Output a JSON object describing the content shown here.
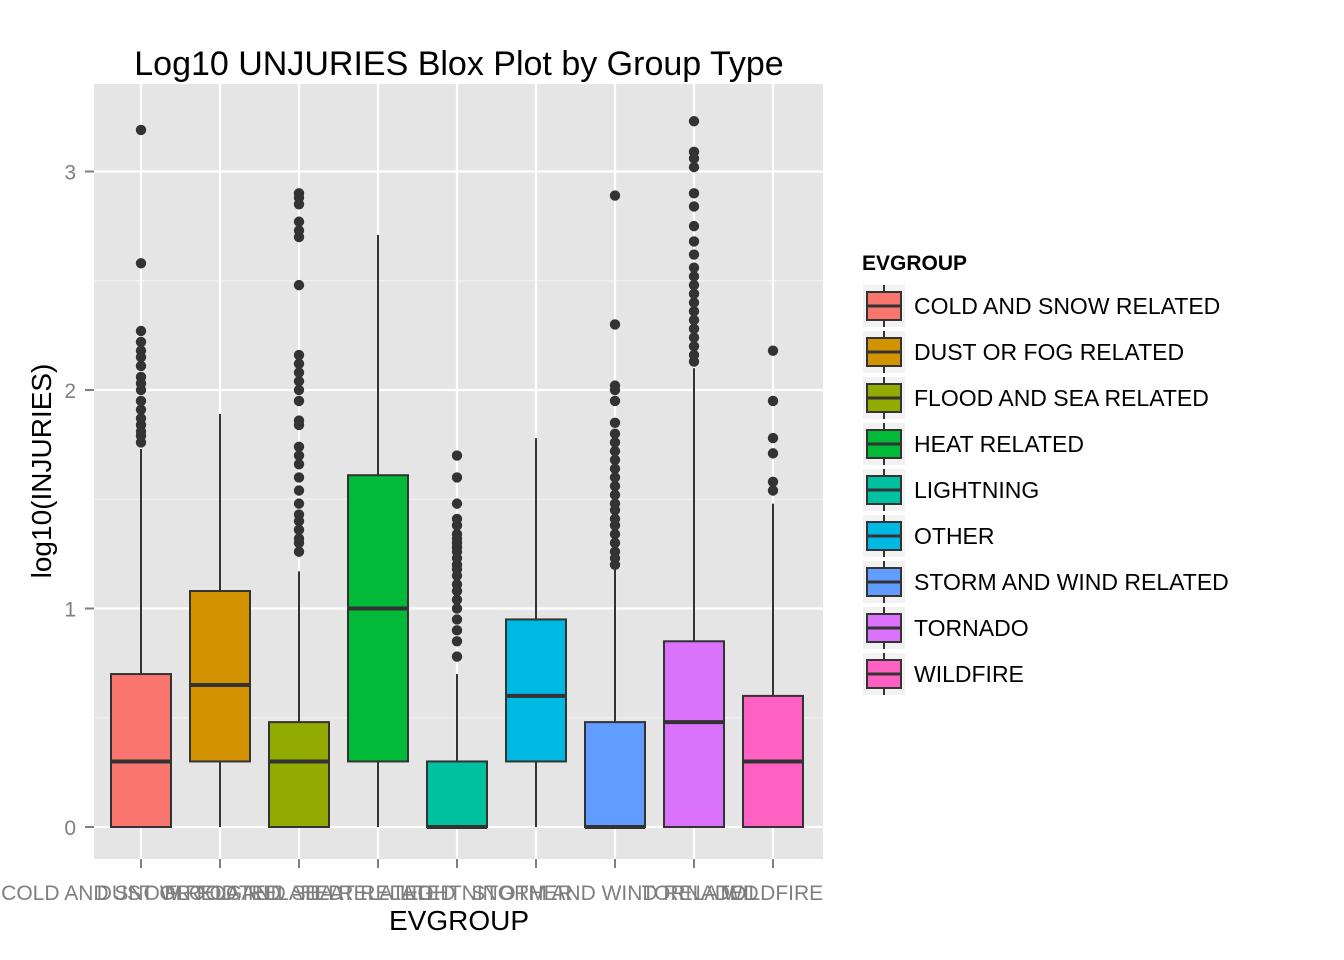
{
  "chart_data": {
    "type": "box",
    "title": "Log10 UNJURIES Blox Plot by Group Type",
    "xlabel": "EVGROUP",
    "ylabel": "log10(INJURIES)",
    "ylim": [
      -0.15,
      3.35
    ],
    "yticks": [
      0,
      1,
      2,
      3
    ],
    "grid": true,
    "legend": {
      "title": "EVGROUP",
      "position": "right"
    },
    "categories": [
      "COLD AND SNOW RELATED",
      "DUST OR FOG RELATED",
      "FLOOD AND SEA RELATED",
      "HEAT RELATED",
      "LIGHTNING",
      "OTHER",
      "STORM AND WIND RELATED",
      "TORNADO",
      "WILDFIRE"
    ],
    "colors": [
      "#F8766D",
      "#D39200",
      "#93AA00",
      "#00BA38",
      "#00C19F",
      "#00B9E3",
      "#619CFF",
      "#DB72FB",
      "#FF61C3"
    ],
    "boxes": [
      {
        "min": 0,
        "q1": 0,
        "median": 0.3,
        "q3": 0.7,
        "max": 1.73,
        "outliers": [
          1.76,
          1.79,
          1.81,
          1.84,
          1.87,
          1.91,
          1.95,
          2.0,
          2.03,
          2.06,
          2.11,
          2.15,
          2.18,
          2.22,
          2.27,
          2.58,
          3.19
        ]
      },
      {
        "min": 0,
        "q1": 0.3,
        "median": 0.65,
        "q3": 1.08,
        "max": 1.89,
        "outliers": []
      },
      {
        "min": 0,
        "q1": 0,
        "median": 0.3,
        "q3": 0.48,
        "max": 1.17,
        "outliers": [
          1.26,
          1.3,
          1.32,
          1.36,
          1.4,
          1.43,
          1.48,
          1.54,
          1.6,
          1.66,
          1.7,
          1.74,
          1.84,
          1.86,
          1.95,
          2.0,
          2.04,
          2.08,
          2.12,
          2.16,
          2.48,
          2.7,
          2.73,
          2.77,
          2.85,
          2.88,
          2.9
        ]
      },
      {
        "min": 0,
        "q1": 0.3,
        "median": 1.0,
        "q3": 1.61,
        "max": 2.71,
        "outliers": []
      },
      {
        "min": 0,
        "q1": 0,
        "median": 0,
        "q3": 0.3,
        "max": 0.7,
        "outliers": [
          0.78,
          0.85,
          0.9,
          0.95,
          1.0,
          1.04,
          1.08,
          1.11,
          1.15,
          1.18,
          1.2,
          1.23,
          1.26,
          1.28,
          1.3,
          1.32,
          1.34,
          1.38,
          1.41,
          1.48,
          1.6,
          1.7
        ]
      },
      {
        "min": 0,
        "q1": 0.3,
        "median": 0.6,
        "q3": 0.95,
        "max": 1.78,
        "outliers": []
      },
      {
        "min": 0,
        "q1": 0,
        "median": 0,
        "q3": 0.48,
        "max": 1.18,
        "outliers": [
          1.2,
          1.23,
          1.26,
          1.3,
          1.34,
          1.38,
          1.41,
          1.45,
          1.48,
          1.52,
          1.56,
          1.6,
          1.64,
          1.68,
          1.72,
          1.76,
          1.8,
          1.85,
          1.95,
          2.0,
          2.02,
          2.3,
          2.89
        ]
      },
      {
        "min": 0,
        "q1": 0,
        "median": 0.48,
        "q3": 0.85,
        "max": 2.1,
        "outliers": [
          2.13,
          2.16,
          2.2,
          2.24,
          2.28,
          2.32,
          2.36,
          2.4,
          2.44,
          2.48,
          2.52,
          2.56,
          2.62,
          2.68,
          2.75,
          2.84,
          2.9,
          3.02,
          3.06,
          3.09,
          3.23
        ]
      },
      {
        "min": 0,
        "q1": 0,
        "median": 0.3,
        "q3": 0.6,
        "max": 1.48,
        "outliers": [
          1.54,
          1.58,
          1.71,
          1.78,
          1.95,
          2.18
        ]
      }
    ]
  }
}
